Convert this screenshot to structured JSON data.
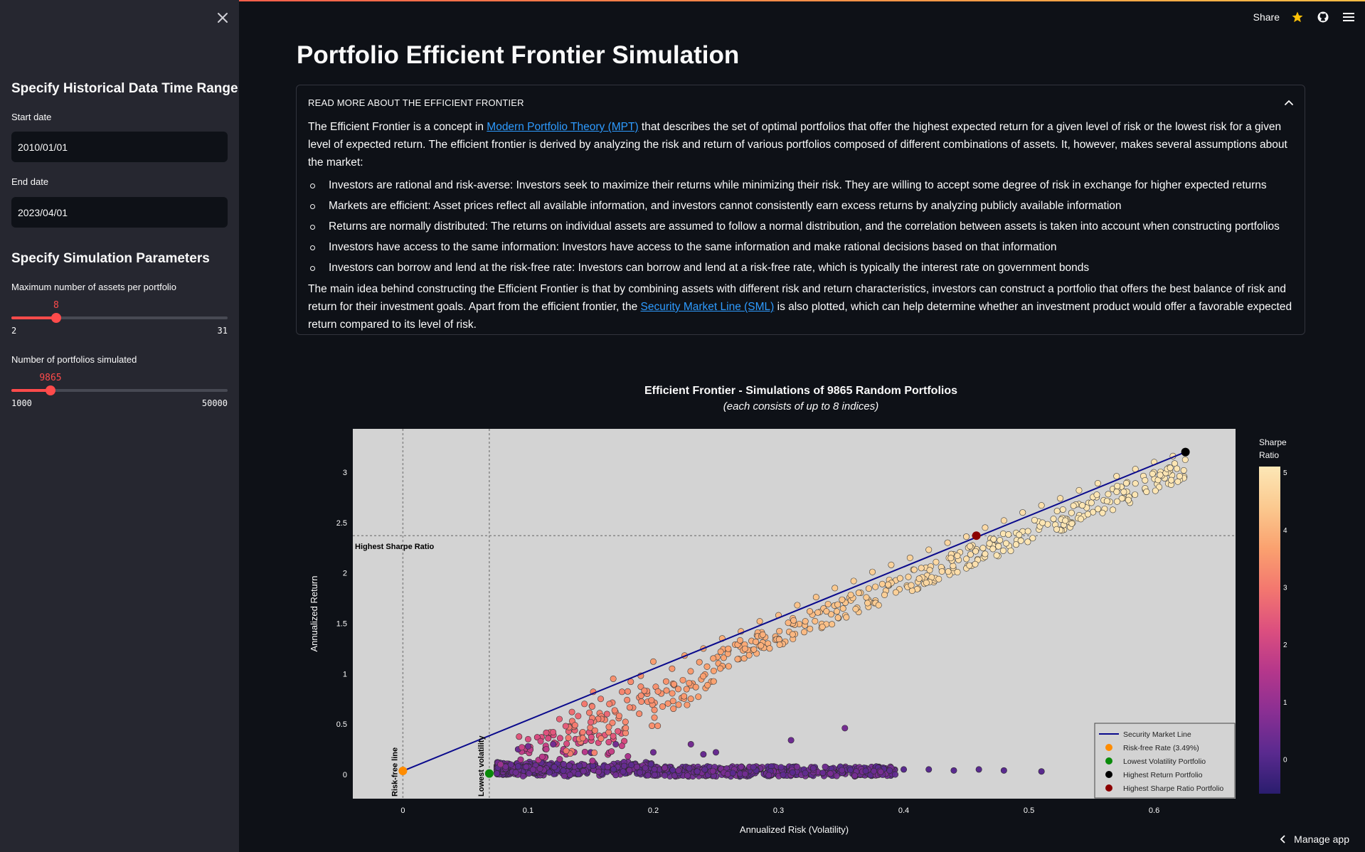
{
  "sidebar": {
    "close_icon": "close-icon",
    "section1_title": "Specify Historical Data Time Range",
    "start_date_label": "Start date",
    "start_date_value": "2010/01/01",
    "end_date_label": "End date",
    "end_date_value": "2023/04/01",
    "section2_title": "Specify Simulation Parameters",
    "assets_slider": {
      "label": "Maximum number of assets per portfolio",
      "value": 8,
      "value_text": "8",
      "min": 2,
      "max": 31,
      "min_text": "2",
      "max_text": "31"
    },
    "portfolios_slider": {
      "label": "Number of portfolios simulated",
      "value": 9865,
      "value_text": "9865",
      "min": 1000,
      "max": 50000,
      "min_text": "1000",
      "max_text": "50000"
    }
  },
  "header": {
    "share_label": "Share",
    "icons": [
      "star-icon",
      "github-icon",
      "hamburger-menu-icon"
    ]
  },
  "main": {
    "title": "Portfolio Efficient Frontier Simulation",
    "expander": {
      "header": "READ MORE ABOUT THE EFFICIENT FRONTIER",
      "p1_pre": "The Efficient Frontier is a concept in ",
      "p1_link": "Modern Portfolio Theory (MPT)",
      "p1_post": " that describes the set of optimal portfolios that offer the highest expected return for a given level of risk or the lowest risk for a given level of expected return. The efficient frontier is derived by analyzing the risk and return of various portfolios composed of different combinations of assets. It, however, makes several assumptions about the market:",
      "bullets": [
        "Investors are rational and risk-averse: Investors seek to maximize their returns while minimizing their risk. They are willing to accept some degree of risk in exchange for higher expected returns",
        "Markets are efficient: Asset prices reflect all available information, and investors cannot consistently earn excess returns by analyzing publicly available information",
        "Returns are normally distributed: The returns on individual assets are assumed to follow a normal distribution, and the correlation between assets is taken into account when constructing portfolios",
        "Investors have access to the same information: Investors have access to the same information and make rational decisions based on that information",
        "Investors can borrow and lend at the risk-free rate: Investors can borrow and lend at a risk-free rate, which is typically the interest rate on government bonds"
      ],
      "p2_pre": "The main idea behind constructing the Efficient Frontier is that by combining assets with different risk and return characteristics, investors can construct a portfolio that offers the best balance of risk and return for their investment goals. Apart from the efficient frontier, the ",
      "p2_link": "Security Market Line (SML)",
      "p2_post": " is also plotted, which can help determine whether an investment product would offer a favorable expected return compared to its level of risk."
    }
  },
  "chart_data": {
    "type": "scatter",
    "title": "Efficient Frontier - Simulations of 9865 Random Portfolios",
    "subtitle": "(each consists of up to 8 indices)",
    "xlabel": "Annualized Risk (Volatility)",
    "ylabel": "Annualized Return",
    "xlim": [
      -0.04,
      0.665
    ],
    "ylim": [
      -0.24,
      3.43
    ],
    "xticks": [
      0,
      0.1,
      0.2,
      0.3,
      0.4,
      0.5,
      0.6
    ],
    "xtick_labels": [
      "0",
      "0.1",
      "0.2",
      "0.3",
      "0.4",
      "0.5",
      "0.6"
    ],
    "yticks": [
      0,
      0.5,
      1,
      1.5,
      2,
      2.5,
      3
    ],
    "ytick_labels": [
      "0",
      "0.5",
      "1",
      "1.5",
      "2",
      "2.5",
      "3"
    ],
    "colorbar": {
      "title_line1": "Sharpe",
      "title_line2": "Ratio",
      "range": [
        -0.6,
        5.1
      ],
      "ticks": [
        0,
        1,
        2,
        3,
        4,
        5
      ],
      "tick_labels": [
        "0",
        "1",
        "2",
        "3",
        "4",
        "5"
      ],
      "colorscale": [
        "#2a1d6e",
        "#5a2a8f",
        "#8a2f93",
        "#b5378b",
        "#dc4f7f",
        "#f3776f",
        "#faa16f",
        "#fbc98f",
        "#fce7b6"
      ]
    },
    "security_market_line": {
      "name": "Security Market Line",
      "x": [
        0,
        0.625
      ],
      "y": [
        0.0349,
        3.2
      ],
      "color": "#0a0a8c"
    },
    "special_points": [
      {
        "name": "Risk-free Rate (3.49%)",
        "x": 0,
        "y": 0.0349,
        "color": "#ff8c00"
      },
      {
        "name": "Lowest Volatility Portfolio",
        "x": 0.069,
        "y": 0.01,
        "color": "#0a8a0a"
      },
      {
        "name": "Highest Return Portfolio",
        "x": 0.625,
        "y": 3.2,
        "color": "#000000"
      },
      {
        "name": "Highest Sharpe Ratio Portfolio",
        "x": 0.458,
        "y": 2.37,
        "color": "#8b0000"
      }
    ],
    "reference_lines": [
      {
        "name": "Risk-free line",
        "orientation": "vertical",
        "x": 0
      },
      {
        "name": "Lowest volatility",
        "orientation": "vertical",
        "x": 0.069
      },
      {
        "name": "Highest Sharpe Ratio",
        "orientation": "horizontal",
        "y": 2.37
      }
    ],
    "frontier_points": [
      [
        0.078,
        0.1,
        1.1
      ],
      [
        0.095,
        0.27,
        1.9
      ],
      [
        0.1,
        0.35,
        2.2
      ],
      [
        0.11,
        0.33,
        2.1
      ],
      [
        0.12,
        0.42,
        2.4
      ],
      [
        0.125,
        0.55,
        2.6
      ],
      [
        0.13,
        0.48,
        2.5
      ],
      [
        0.135,
        0.62,
        2.8
      ],
      [
        0.14,
        0.58,
        2.7
      ],
      [
        0.145,
        0.7,
        3.0
      ],
      [
        0.15,
        0.52,
        2.6
      ],
      [
        0.152,
        0.82,
        3.2
      ],
      [
        0.158,
        0.75,
        3.1
      ],
      [
        0.163,
        0.6,
        2.7
      ],
      [
        0.168,
        0.95,
        3.4
      ],
      [
        0.175,
        0.82,
        3.2
      ],
      [
        0.182,
        0.92,
        3.3
      ],
      [
        0.19,
        0.98,
        3.4
      ],
      [
        0.2,
        1.12,
        3.6
      ],
      [
        0.215,
        1.05,
        3.5
      ],
      [
        0.225,
        1.18,
        3.7
      ],
      [
        0.24,
        1.25,
        3.8
      ],
      [
        0.255,
        1.35,
        3.9
      ],
      [
        0.27,
        1.42,
        4.0
      ],
      [
        0.285,
        1.52,
        4.1
      ],
      [
        0.3,
        1.58,
        4.2
      ],
      [
        0.315,
        1.68,
        4.3
      ],
      [
        0.33,
        1.76,
        4.3
      ],
      [
        0.345,
        1.85,
        4.4
      ],
      [
        0.36,
        1.92,
        4.5
      ],
      [
        0.375,
        2.01,
        4.5
      ],
      [
        0.39,
        2.08,
        4.6
      ],
      [
        0.405,
        2.15,
        4.6
      ],
      [
        0.42,
        2.23,
        4.7
      ],
      [
        0.435,
        2.3,
        4.7
      ],
      [
        0.45,
        2.36,
        4.8
      ],
      [
        0.465,
        2.45,
        4.8
      ],
      [
        0.48,
        2.52,
        4.8
      ],
      [
        0.495,
        2.6,
        4.9
      ],
      [
        0.51,
        2.67,
        4.9
      ],
      [
        0.525,
        2.74,
        4.9
      ],
      [
        0.54,
        2.82,
        5.0
      ],
      [
        0.555,
        2.89,
        5.0
      ],
      [
        0.57,
        2.96,
        5.0
      ],
      [
        0.585,
        3.03,
        5.0
      ],
      [
        0.6,
        3.1,
        5.0
      ],
      [
        0.615,
        3.16,
        5.0
      ]
    ],
    "cloud_points": [
      [
        0.092,
        0.25,
        0.4
      ],
      [
        0.1,
        0.28,
        0.5
      ],
      [
        0.12,
        0.3,
        0.5
      ],
      [
        0.15,
        0.22,
        0.4
      ],
      [
        0.17,
        0.3,
        0.5
      ],
      [
        0.2,
        0.22,
        0.4
      ],
      [
        0.23,
        0.3,
        0.5
      ],
      [
        0.24,
        0.2,
        0.3
      ],
      [
        0.25,
        0.22,
        0.3
      ],
      [
        0.31,
        0.34,
        0.4
      ],
      [
        0.353,
        0.46,
        0.5
      ],
      [
        0.4,
        0.05,
        0.1
      ],
      [
        0.42,
        0.05,
        0.1
      ],
      [
        0.44,
        0.04,
        0.1
      ],
      [
        0.46,
        0.05,
        0.1
      ],
      [
        0.48,
        0.04,
        0.1
      ],
      [
        0.51,
        0.03,
        0.1
      ]
    ],
    "legend": {
      "placement": "bottom-right",
      "entries": [
        "Security Market Line",
        "Risk-free Rate (3.49%)",
        "Lowest Volatility Portfolio",
        "Highest Return Portfolio",
        "Highest Sharpe Ratio Portfolio"
      ]
    },
    "annotations": [
      "Risk-free line",
      "Lowest volatility",
      "Highest Sharpe Ratio"
    ]
  },
  "footer": {
    "manage_app_label": "Manage app"
  }
}
